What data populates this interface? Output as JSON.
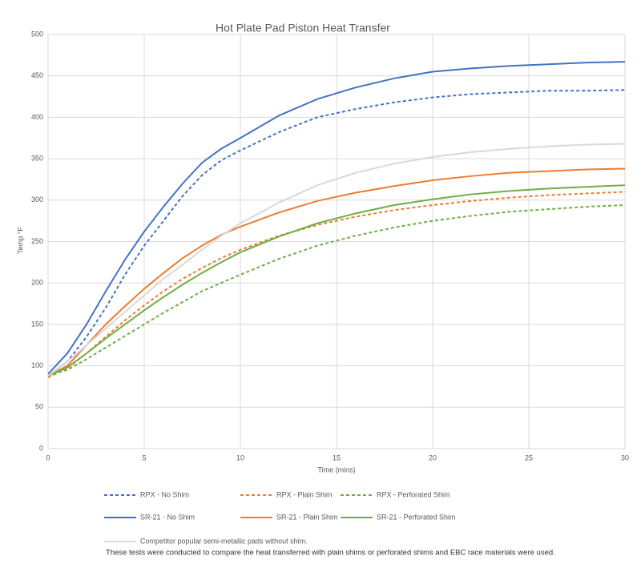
{
  "chart_data": {
    "type": "line",
    "title": "Hot Plate Pad Piston Heat Transfer",
    "x_label": "Time (mins)",
    "y_label": "Temp °F",
    "x": [
      0,
      1,
      2,
      3,
      4,
      5,
      6,
      7,
      8,
      9,
      10,
      12,
      14,
      16,
      18,
      20,
      22,
      24,
      26,
      28,
      30
    ],
    "xlim": [
      0,
      30
    ],
    "xticks": [
      0,
      5,
      10,
      15,
      20,
      25,
      30
    ],
    "ylim": [
      0,
      500
    ],
    "yticks": [
      0,
      50,
      100,
      150,
      200,
      250,
      300,
      350,
      400,
      450,
      500
    ],
    "grid": true,
    "series": [
      {
        "name": "RPX - No Shim",
        "color": "#4472c4",
        "style": "dashed",
        "values": [
          88,
          105,
          135,
          170,
          210,
          245,
          275,
          305,
          330,
          348,
          360,
          382,
          400,
          410,
          418,
          424,
          428,
          430,
          432,
          432,
          433
        ]
      },
      {
        "name": "RPX - Plain Shim",
        "color": "#ed7d31",
        "style": "dashed",
        "values": [
          86,
          97,
          115,
          135,
          155,
          173,
          190,
          205,
          218,
          230,
          240,
          257,
          270,
          280,
          288,
          294,
          299,
          303,
          306,
          308,
          310
        ]
      },
      {
        "name": "RPX - Perforated Shim",
        "color": "#70ad47",
        "style": "dashed",
        "values": [
          88,
          95,
          108,
          122,
          136,
          150,
          164,
          177,
          190,
          200,
          210,
          229,
          245,
          257,
          267,
          275,
          281,
          286,
          289,
          292,
          294
        ]
      },
      {
        "name": "SR-21 - No Shim",
        "color": "#4472c4",
        "style": "solid",
        "values": [
          90,
          115,
          150,
          190,
          228,
          262,
          292,
          320,
          345,
          362,
          375,
          402,
          422,
          436,
          447,
          455,
          459,
          462,
          464,
          466,
          467
        ]
      },
      {
        "name": "SR-21 - Plain Shim",
        "color": "#ed7d31",
        "style": "solid",
        "values": [
          88,
          100,
          125,
          150,
          172,
          193,
          212,
          230,
          245,
          258,
          268,
          285,
          299,
          309,
          317,
          324,
          329,
          333,
          335,
          337,
          338
        ]
      },
      {
        "name": "SR-21 - Perforated Shim",
        "color": "#70ad47",
        "style": "solid",
        "values": [
          88,
          98,
          115,
          133,
          150,
          167,
          183,
          198,
          212,
          225,
          237,
          256,
          272,
          284,
          294,
          301,
          307,
          311,
          314,
          316,
          318
        ]
      },
      {
        "name": "Competitor popular semi-metallic pads without shim.",
        "color": "#d9d9d9",
        "style": "solid",
        "values": [
          88,
          105,
          125,
          145,
          165,
          185,
          205,
          222,
          240,
          257,
          272,
          297,
          318,
          333,
          344,
          352,
          358,
          362,
          365,
          367,
          368
        ]
      }
    ],
    "note": "These tests were conducted to compare the heat transferred with plain shims or perforated shims and EBC race materials were used."
  }
}
